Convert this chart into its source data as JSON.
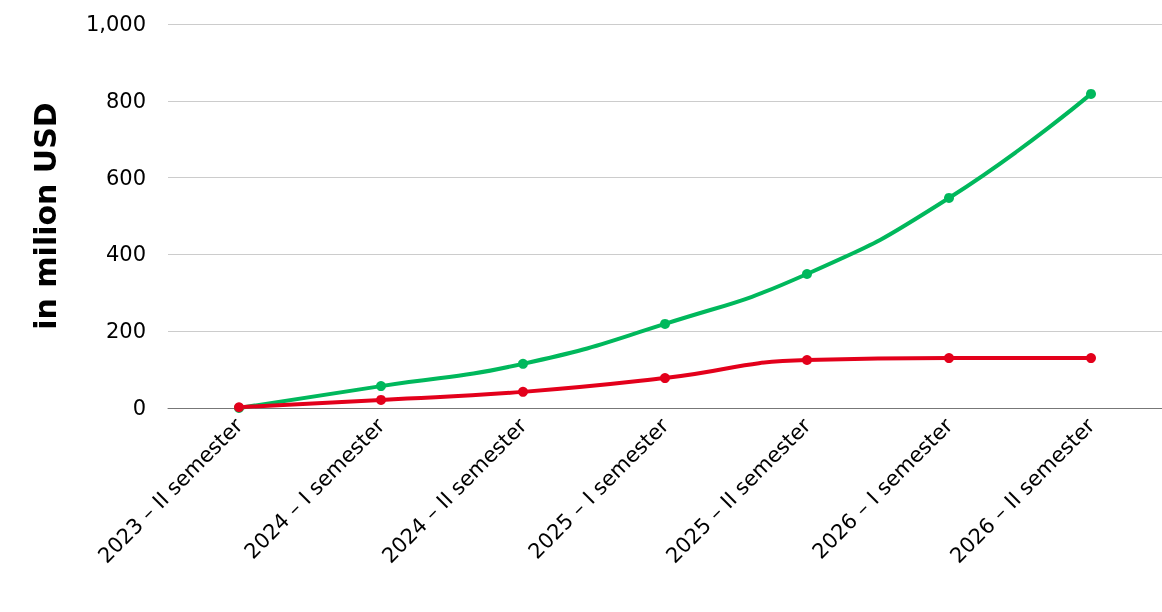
{
  "chart_data": {
    "type": "line",
    "ylabel": "in milion USD",
    "categories": [
      "2023 – II semester",
      "2024 – I semester",
      "2024 – II semester",
      "2025 – I semester",
      "2025 – II semester",
      "2026 – I semester",
      "2026 – II semester"
    ],
    "series": [
      {
        "color": "#00b85c",
        "values": [
          0,
          57,
          115,
          219,
          349,
          547,
          818
        ]
      },
      {
        "color": "#e3001b",
        "values": [
          2,
          21,
          42,
          78,
          125,
          130,
          130
        ]
      }
    ],
    "ylim": [
      0,
      1000
    ],
    "yticks": [
      0,
      200,
      400,
      600,
      800,
      {
        "value": 1000,
        "label": "1,000"
      }
    ],
    "grid": "y",
    "marker": "circle",
    "line_style": "solid"
  }
}
